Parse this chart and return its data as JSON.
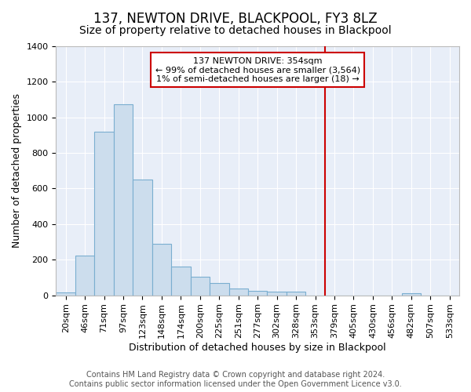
{
  "title": "137, NEWTON DRIVE, BLACKPOOL, FY3 8LZ",
  "subtitle": "Size of property relative to detached houses in Blackpool",
  "xlabel": "Distribution of detached houses by size in Blackpool",
  "ylabel": "Number of detached properties",
  "bar_labels": [
    "20sqm",
    "46sqm",
    "71sqm",
    "97sqm",
    "123sqm",
    "148sqm",
    "174sqm",
    "200sqm",
    "225sqm",
    "251sqm",
    "277sqm",
    "302sqm",
    "328sqm",
    "353sqm",
    "379sqm",
    "405sqm",
    "430sqm",
    "456sqm",
    "482sqm",
    "507sqm",
    "533sqm"
  ],
  "bar_values": [
    15,
    225,
    920,
    1075,
    650,
    290,
    160,
    105,
    70,
    38,
    25,
    22,
    20,
    0,
    0,
    0,
    0,
    0,
    12,
    0,
    0
  ],
  "bar_color": "#ccdded",
  "bar_edge_color": "#7aaed0",
  "background_color": "#e8eef8",
  "grid_color": "#ffffff",
  "vline_x_idx": 13,
  "vline_color": "#cc0000",
  "annotation_line1": "137 NEWTON DRIVE: 354sqm",
  "annotation_line2": "← 99% of detached houses are smaller (3,564)",
  "annotation_line3": "1% of semi-detached houses are larger (18) →",
  "ylim": [
    0,
    1400
  ],
  "yticks": [
    0,
    200,
    400,
    600,
    800,
    1000,
    1200,
    1400
  ],
  "title_fontsize": 12,
  "subtitle_fontsize": 10,
  "axis_label_fontsize": 9,
  "tick_fontsize": 8,
  "annotation_fontsize": 8,
  "footer_fontsize": 7
}
